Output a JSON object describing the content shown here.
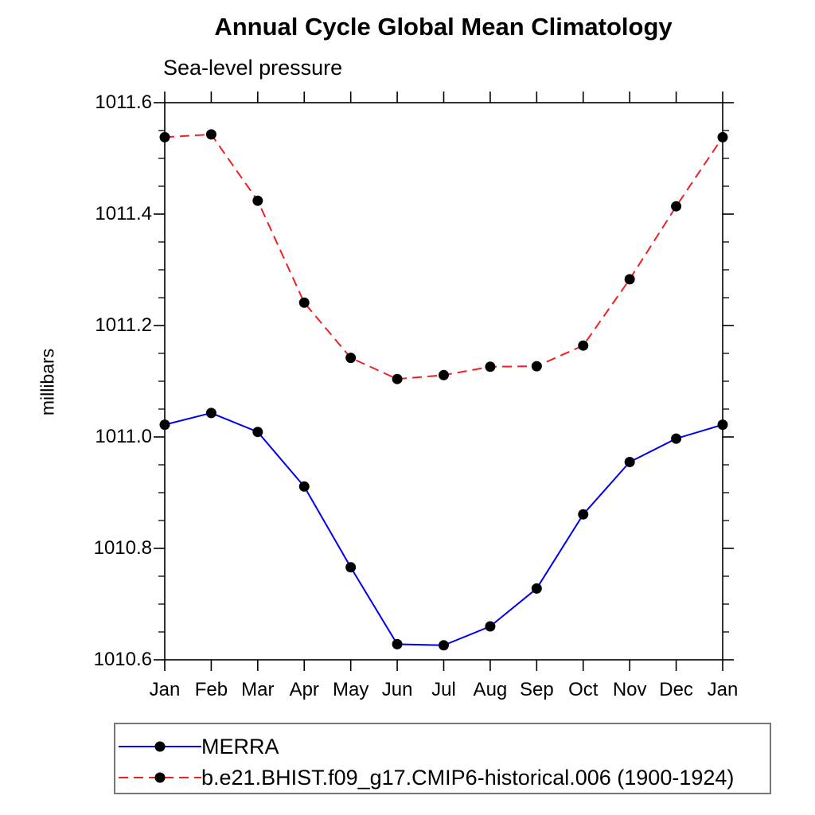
{
  "chart_data": {
    "type": "line",
    "title": "Annual Cycle Global Mean Climatology",
    "subtitle": "Sea-level pressure",
    "ylabel": "millibars",
    "xlabel": "",
    "categories": [
      "Jan",
      "Feb",
      "Mar",
      "Apr",
      "May",
      "Jun",
      "Jul",
      "Aug",
      "Sep",
      "Oct",
      "Nov",
      "Dec",
      "Jan"
    ],
    "ylim": [
      1010.6,
      1011.6
    ],
    "yticks": [
      {
        "value": 1011.6,
        "label": "1011.6"
      },
      {
        "value": 1011.4,
        "label": "1011.4"
      },
      {
        "value": 1011.2,
        "label": "1011.2"
      },
      {
        "value": 1011.0,
        "label": "1011.0"
      },
      {
        "value": 1010.8,
        "label": "1010.8"
      },
      {
        "value": 1010.6,
        "label": "1010.6"
      }
    ],
    "ytick_minor_step": 0.05,
    "grid": false,
    "legend_position": "bottom",
    "axis_color": "#000000",
    "series": [
      {
        "name": "MERRA",
        "color": "#0000ee",
        "line_style": "solid",
        "marker": "filled-circle",
        "marker_color": "#000000",
        "values": [
          1011.022,
          1011.043,
          1011.009,
          1010.911,
          1010.766,
          1010.628,
          1010.626,
          1010.66,
          1010.728,
          1010.861,
          1010.955,
          1010.997,
          1011.022
        ]
      },
      {
        "name": "b.e21.BHIST.f09_g17.CMIP6-historical.006 (1900-1924)",
        "color": "#f02020",
        "line_style": "dashed",
        "marker": "filled-circle",
        "marker_color": "#000000",
        "values": [
          1011.538,
          1011.543,
          1011.424,
          1011.241,
          1011.142,
          1011.104,
          1011.111,
          1011.126,
          1011.127,
          1011.164,
          1011.283,
          1011.414,
          1011.538
        ]
      }
    ]
  }
}
